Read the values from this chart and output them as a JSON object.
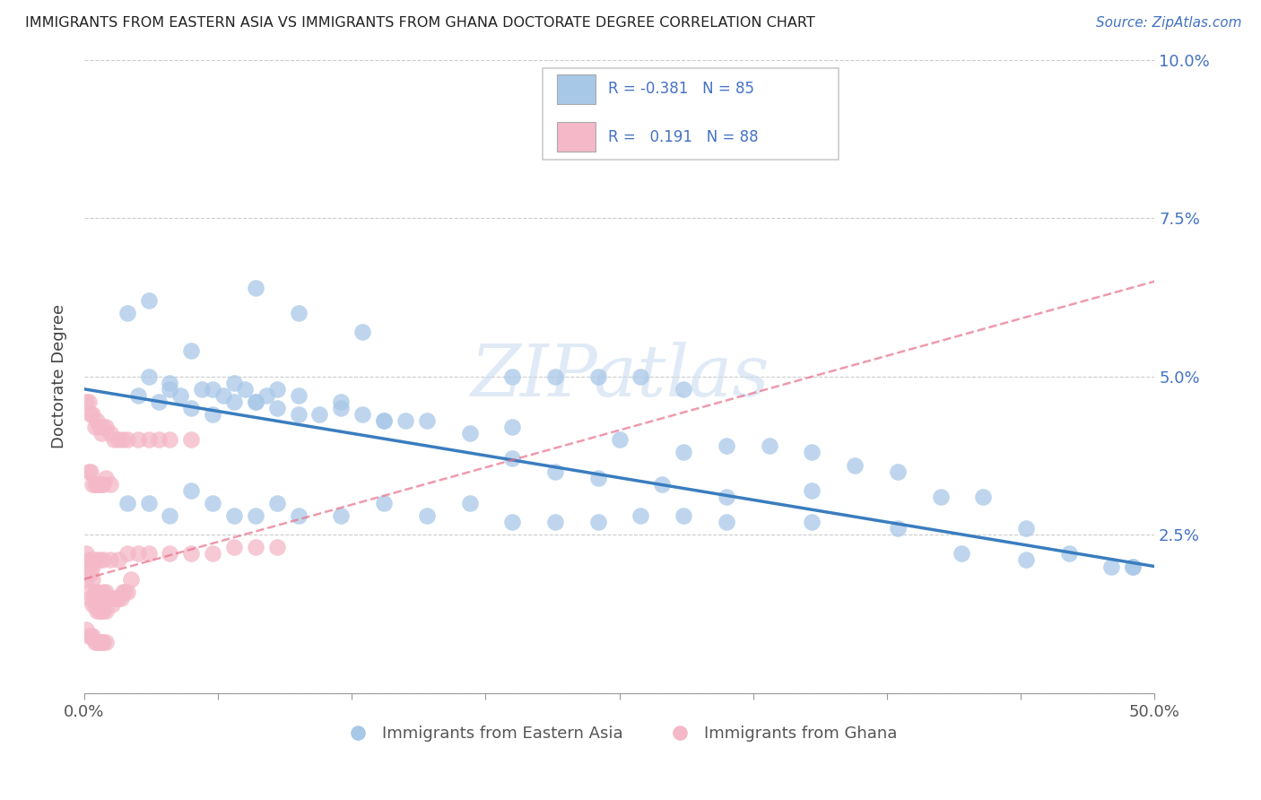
{
  "title": "IMMIGRANTS FROM EASTERN ASIA VS IMMIGRANTS FROM GHANA DOCTORATE DEGREE CORRELATION CHART",
  "source": "Source: ZipAtlas.com",
  "ylabel": "Doctorate Degree",
  "xlabel_blue": "Immigrants from Eastern Asia",
  "xlabel_pink": "Immigrants from Ghana",
  "r_blue": -0.381,
  "n_blue": 85,
  "r_pink": 0.191,
  "n_pink": 88,
  "xlim": [
    0.0,
    0.5
  ],
  "ylim": [
    0.0,
    0.1
  ],
  "yticks": [
    0.0,
    0.025,
    0.05,
    0.075,
    0.1
  ],
  "ytick_labels": [
    "",
    "2.5%",
    "5.0%",
    "7.5%",
    "10.0%"
  ],
  "xtick_positions": [
    0.0,
    0.0625,
    0.125,
    0.1875,
    0.25,
    0.3125,
    0.375,
    0.4375,
    0.5
  ],
  "xlabels_show": {
    "0.0": "0.0%",
    "0.50": "50.0%"
  },
  "color_blue": "#a8c8e8",
  "color_pink": "#f4b8c8",
  "line_color_blue": "#3a7dbf",
  "line_color_pink": "#e8708a",
  "watermark_color": "#ccddf0",
  "blue_x": [
    0.025,
    0.03,
    0.035,
    0.04,
    0.045,
    0.05,
    0.055,
    0.06,
    0.065,
    0.07,
    0.075,
    0.08,
    0.085,
    0.09,
    0.1,
    0.11,
    0.12,
    0.13,
    0.14,
    0.15,
    0.02,
    0.03,
    0.04,
    0.05,
    0.06,
    0.07,
    0.08,
    0.09,
    0.1,
    0.12,
    0.14,
    0.16,
    0.18,
    0.2,
    0.22,
    0.24,
    0.26,
    0.28,
    0.3,
    0.32,
    0.34,
    0.36,
    0.38,
    0.4,
    0.42,
    0.44,
    0.46,
    0.48,
    0.49,
    0.49,
    0.02,
    0.03,
    0.04,
    0.05,
    0.06,
    0.07,
    0.08,
    0.09,
    0.1,
    0.12,
    0.14,
    0.16,
    0.18,
    0.2,
    0.22,
    0.24,
    0.26,
    0.28,
    0.3,
    0.34,
    0.38,
    0.41,
    0.44,
    0.2,
    0.22,
    0.24,
    0.27,
    0.3,
    0.34,
    0.2,
    0.25,
    0.28,
    0.13,
    0.1,
    0.08
  ],
  "blue_y": [
    0.047,
    0.05,
    0.046,
    0.049,
    0.047,
    0.045,
    0.048,
    0.044,
    0.047,
    0.046,
    0.048,
    0.046,
    0.047,
    0.045,
    0.044,
    0.044,
    0.046,
    0.044,
    0.043,
    0.043,
    0.06,
    0.062,
    0.048,
    0.054,
    0.048,
    0.049,
    0.046,
    0.048,
    0.047,
    0.045,
    0.043,
    0.043,
    0.041,
    0.05,
    0.05,
    0.05,
    0.05,
    0.048,
    0.039,
    0.039,
    0.038,
    0.036,
    0.035,
    0.031,
    0.031,
    0.026,
    0.022,
    0.02,
    0.02,
    0.02,
    0.03,
    0.03,
    0.028,
    0.032,
    0.03,
    0.028,
    0.028,
    0.03,
    0.028,
    0.028,
    0.03,
    0.028,
    0.03,
    0.027,
    0.027,
    0.027,
    0.028,
    0.028,
    0.027,
    0.027,
    0.026,
    0.022,
    0.021,
    0.037,
    0.035,
    0.034,
    0.033,
    0.031,
    0.032,
    0.042,
    0.04,
    0.038,
    0.057,
    0.06,
    0.064
  ],
  "pink_x": [
    0.001,
    0.002,
    0.002,
    0.003,
    0.003,
    0.004,
    0.004,
    0.005,
    0.005,
    0.006,
    0.006,
    0.007,
    0.007,
    0.008,
    0.008,
    0.009,
    0.009,
    0.01,
    0.01,
    0.011,
    0.012,
    0.013,
    0.014,
    0.015,
    0.016,
    0.017,
    0.018,
    0.019,
    0.02,
    0.022,
    0.002,
    0.003,
    0.004,
    0.005,
    0.006,
    0.007,
    0.008,
    0.009,
    0.01,
    0.012,
    0.001,
    0.002,
    0.003,
    0.004,
    0.005,
    0.006,
    0.007,
    0.008,
    0.009,
    0.01,
    0.012,
    0.014,
    0.016,
    0.018,
    0.02,
    0.025,
    0.03,
    0.035,
    0.04,
    0.05,
    0.001,
    0.002,
    0.003,
    0.004,
    0.005,
    0.006,
    0.007,
    0.008,
    0.009,
    0.01,
    0.001,
    0.002,
    0.003,
    0.004,
    0.005,
    0.007,
    0.009,
    0.012,
    0.016,
    0.02,
    0.025,
    0.03,
    0.04,
    0.05,
    0.06,
    0.07,
    0.08,
    0.09
  ],
  "pink_y": [
    0.018,
    0.016,
    0.02,
    0.015,
    0.019,
    0.014,
    0.018,
    0.014,
    0.016,
    0.013,
    0.016,
    0.013,
    0.015,
    0.013,
    0.015,
    0.013,
    0.016,
    0.013,
    0.016,
    0.015,
    0.015,
    0.014,
    0.015,
    0.015,
    0.015,
    0.015,
    0.016,
    0.016,
    0.016,
    0.018,
    0.035,
    0.035,
    0.033,
    0.033,
    0.033,
    0.033,
    0.033,
    0.033,
    0.034,
    0.033,
    0.046,
    0.046,
    0.044,
    0.044,
    0.042,
    0.043,
    0.042,
    0.041,
    0.042,
    0.042,
    0.041,
    0.04,
    0.04,
    0.04,
    0.04,
    0.04,
    0.04,
    0.04,
    0.04,
    0.04,
    0.01,
    0.009,
    0.009,
    0.009,
    0.008,
    0.008,
    0.008,
    0.008,
    0.008,
    0.008,
    0.022,
    0.021,
    0.021,
    0.02,
    0.021,
    0.021,
    0.021,
    0.021,
    0.021,
    0.022,
    0.022,
    0.022,
    0.022,
    0.022,
    0.022,
    0.023,
    0.023,
    0.023
  ]
}
